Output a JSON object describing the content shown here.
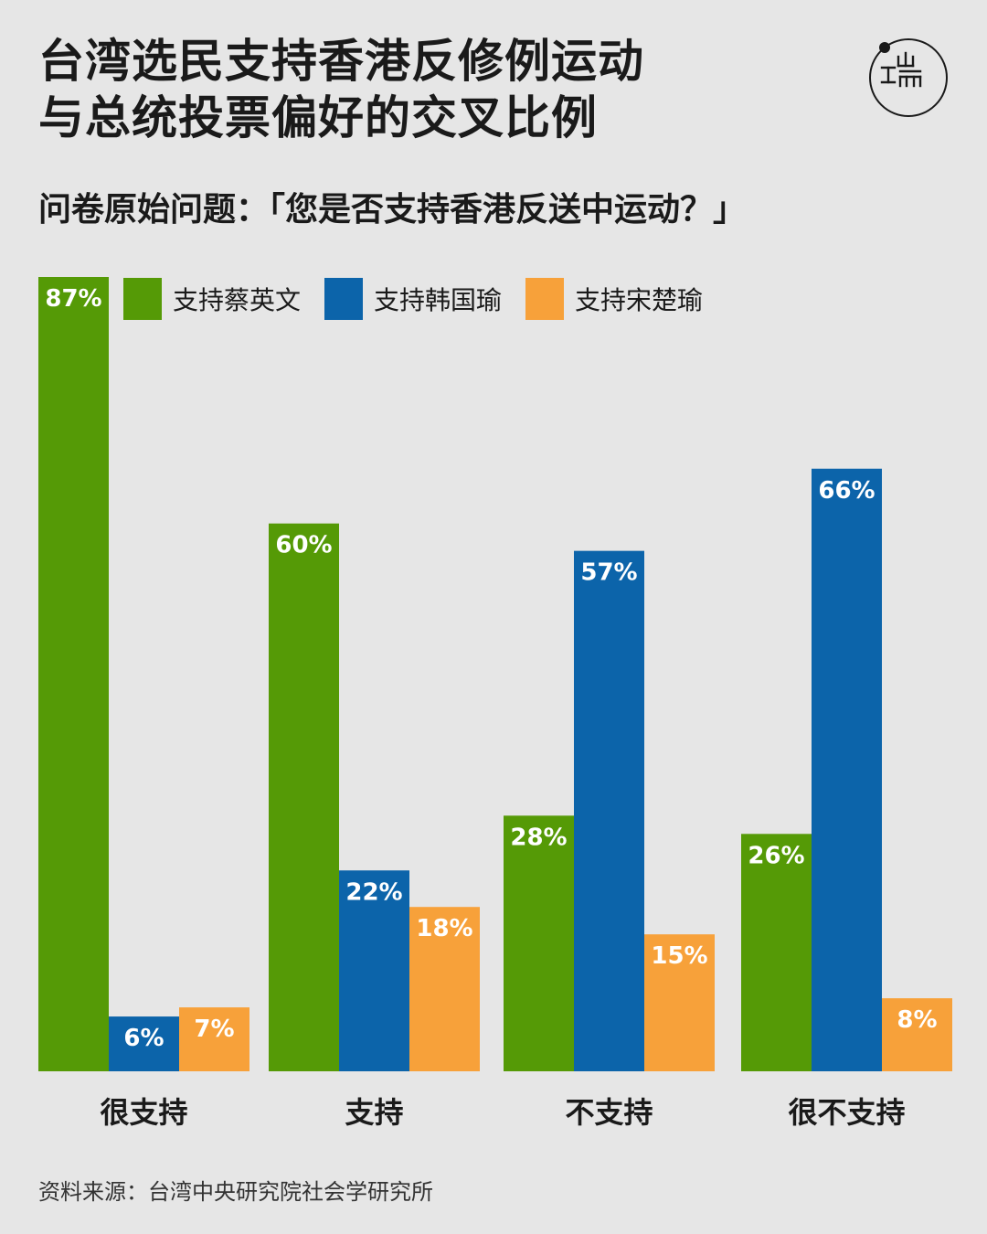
{
  "title_lines": [
    "台湾选民支持香港反修例运动",
    "与总统投票偏好的交叉比例"
  ],
  "subtitle": "问卷原始问题：「您是否支持香港反送中运动？」",
  "source": "资料来源：台湾中央研究院社会学研究所",
  "logo": {
    "icon": "initium-logo-icon"
  },
  "colors": {
    "green": "#559a06",
    "blue": "#0c64aa",
    "orange": "#f7a13a",
    "background": "#e6e6e6"
  },
  "chart_data": {
    "type": "bar",
    "categories": [
      "很支持",
      "支持",
      "不支持",
      "很不支持"
    ],
    "series": [
      {
        "name": "支持蔡英文",
        "color": "#559a06",
        "values": [
          87,
          60,
          28,
          26
        ]
      },
      {
        "name": "支持韩国瑜",
        "color": "#0c64aa",
        "values": [
          6,
          22,
          57,
          66
        ]
      },
      {
        "name": "支持宋楚瑜",
        "color": "#f7a13a",
        "values": [
          7,
          18,
          15,
          8
        ]
      }
    ],
    "value_suffix": "%",
    "ylim": [
      0,
      87
    ],
    "grid": false,
    "legend_position": "top",
    "data_labels": true
  }
}
